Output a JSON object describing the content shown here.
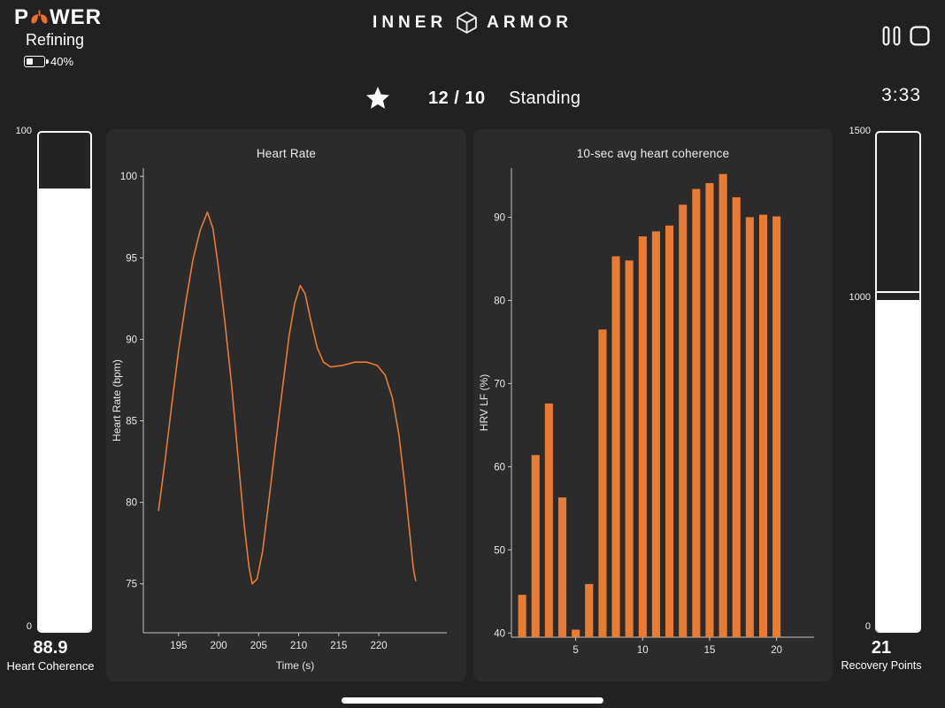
{
  "header": {
    "logo_p": "P",
    "logo_wer": "WER",
    "subtitle": "Refining",
    "battery_label": "40%",
    "battery_level": 40,
    "brand_left": "INNER",
    "brand_right": "ARMOR"
  },
  "status_bar": {
    "set_counter": "12 / 10",
    "exercise": "Standing",
    "timer": "3:33"
  },
  "coherence_gauge": {
    "max_label": "100",
    "min_label": "0",
    "fill_pct": 88.9,
    "value": "88.9",
    "caption": "Heart Coherence"
  },
  "recovery_gauge": {
    "max_label": "1500",
    "mid_label": "1000",
    "min_label": "0",
    "fill_pct": 66.4,
    "marker_pct": 67.8,
    "value": "21",
    "caption": "Recovery Points"
  },
  "colors": {
    "accent": "#e87c33",
    "background": "#212121",
    "panel": "#2b2b2b"
  },
  "chart_data": [
    {
      "type": "line",
      "title": "Heart Rate",
      "xlabel": "Time (s)",
      "ylabel": "Heart Rate (bpm)",
      "xlim": [
        190.6,
        228.5
      ],
      "ylim": [
        72,
        100.5
      ],
      "xticks": [
        195,
        200,
        205,
        210,
        215,
        220
      ],
      "yticks": [
        75,
        80,
        85,
        90,
        95,
        100
      ],
      "color": "#e87c33",
      "points": [
        [
          192.5,
          79.5
        ],
        [
          193.3,
          82.5
        ],
        [
          194.1,
          85.8
        ],
        [
          195.0,
          89.3
        ],
        [
          195.9,
          92.3
        ],
        [
          196.8,
          94.9
        ],
        [
          197.7,
          96.7
        ],
        [
          198.6,
          97.8
        ],
        [
          199.3,
          96.8
        ],
        [
          200.0,
          94.3
        ],
        [
          200.8,
          91.0
        ],
        [
          201.6,
          87.3
        ],
        [
          202.4,
          82.9
        ],
        [
          203.2,
          78.6
        ],
        [
          203.8,
          76.0
        ],
        [
          204.2,
          75.0
        ],
        [
          204.8,
          75.3
        ],
        [
          205.5,
          77.0
        ],
        [
          206.3,
          80.2
        ],
        [
          207.2,
          83.9
        ],
        [
          208.0,
          87.1
        ],
        [
          208.8,
          90.2
        ],
        [
          209.5,
          92.2
        ],
        [
          210.2,
          93.3
        ],
        [
          210.8,
          92.8
        ],
        [
          211.5,
          91.2
        ],
        [
          212.3,
          89.5
        ],
        [
          213.1,
          88.6
        ],
        [
          214.0,
          88.3
        ],
        [
          215.5,
          88.4
        ],
        [
          217.0,
          88.6
        ],
        [
          218.5,
          88.6
        ],
        [
          219.8,
          88.4
        ],
        [
          220.8,
          87.8
        ],
        [
          221.7,
          86.4
        ],
        [
          222.5,
          84.2
        ],
        [
          223.2,
          81.3
        ],
        [
          223.8,
          78.4
        ],
        [
          224.3,
          76.0
        ],
        [
          224.6,
          75.2
        ]
      ]
    },
    {
      "type": "bar",
      "title": "10-sec avg heart coherence",
      "xlabel": "",
      "ylabel": "HRV LF (%)",
      "xlim": [
        0.2,
        22.8
      ],
      "ylim": [
        39.5,
        95.9
      ],
      "xticks": [
        5,
        10,
        15,
        20
      ],
      "yticks": [
        40,
        50,
        60,
        70,
        80,
        90
      ],
      "color": "#e87c33",
      "bar_width": 0.6,
      "x": [
        1,
        2,
        3,
        4,
        5,
        6,
        7,
        8,
        9,
        10,
        11,
        12,
        13,
        14,
        15,
        16,
        17,
        18,
        19,
        20
      ],
      "values": [
        44.6,
        61.4,
        67.6,
        56.3,
        40.4,
        45.9,
        76.5,
        85.3,
        84.8,
        87.7,
        88.3,
        89.0,
        91.5,
        93.4,
        94.1,
        95.2,
        92.4,
        90.0,
        90.3,
        90.1
      ]
    }
  ]
}
